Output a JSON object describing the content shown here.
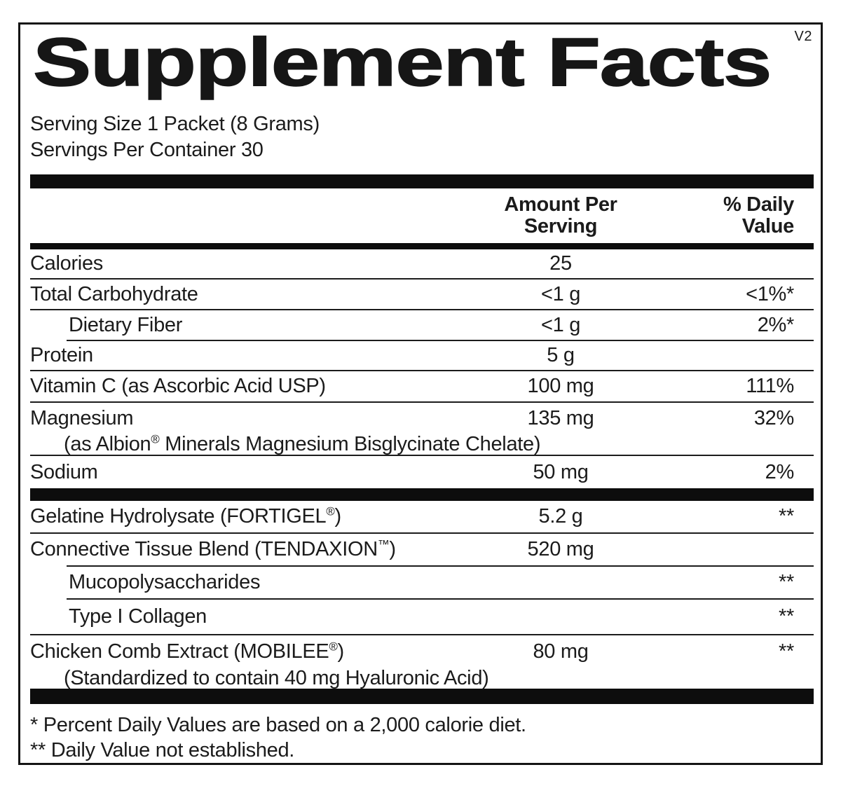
{
  "label": {
    "version": "V2",
    "title": "Supplement Facts",
    "serving_size": "Serving Size 1 Packet (8 Grams)",
    "servings_per_container": "Servings Per Container 30",
    "amount_header": "Amount Per\nServing",
    "dv_header": "% Daily\nValue",
    "colors": {
      "ink": "#1b1b1b",
      "bars": "#0d0d0d",
      "background": "#ffffff"
    }
  },
  "rows": [
    {
      "name": "Calories",
      "amount": "25",
      "dv": ""
    },
    {
      "name": "Total Carbohydrate",
      "amount": "<1 g",
      "dv": "<1%*"
    },
    {
      "name": "Dietary Fiber",
      "amount": "<1 g",
      "dv": "2%*",
      "indent": true
    },
    {
      "name": "Protein",
      "amount": "5 g",
      "dv": ""
    },
    {
      "name": "Vitamin C (as Ascorbic Acid USP)",
      "amount": "100 mg",
      "dv": "111%"
    },
    {
      "name": "Magnesium",
      "amount": "135 mg",
      "dv": "32%",
      "subline": "(as Albion® Minerals Magnesium Bisglycinate Chelate)"
    },
    {
      "name": "Sodium",
      "amount": "50 mg",
      "dv": "2%"
    },
    {
      "name": "Gelatine Hydrolysate (FORTIGEL®)",
      "amount": "5.2 g",
      "dv": "**"
    },
    {
      "name": "Connective Tissue Blend (TENDAXION™)",
      "amount": "520 mg",
      "dv": ""
    },
    {
      "name": "Mucopolysaccharides",
      "amount": "",
      "dv": "**",
      "indent": true
    },
    {
      "name": "Type I Collagen",
      "amount": "",
      "dv": "**",
      "indent": true
    },
    {
      "name": "Chicken Comb Extract (MOBILEE®)",
      "amount": "80 mg",
      "dv": "**",
      "subline": "(Standardized to contain 40 mg Hyaluronic Acid)"
    }
  ],
  "footnotes": [
    "* Percent Daily Values are based on a 2,000 calorie diet.",
    "** Daily Value not established."
  ]
}
